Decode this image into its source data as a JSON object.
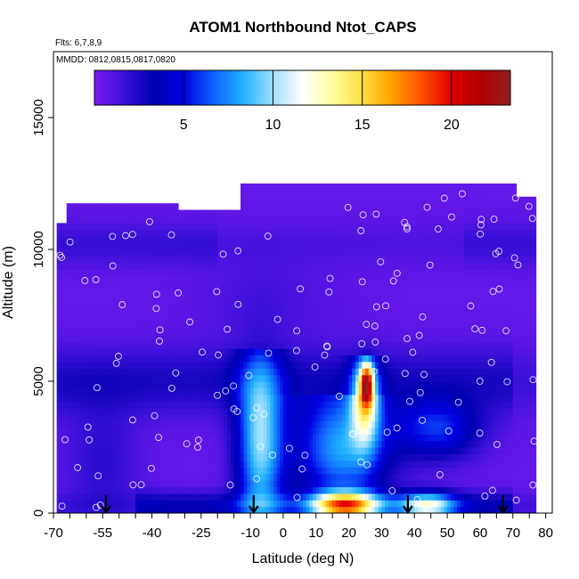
{
  "chart_data": {
    "type": "heatmap",
    "title": "ATOM1 Northbound Ntot_CAPS",
    "annotations": [
      "Flts: 6,7,8,9",
      "MMDD: 0812,0815,0817,0820"
    ],
    "xlabel": "Latitude (deg N)",
    "ylabel": "Altitude (m)",
    "xlim": [
      -70,
      82
    ],
    "ylim": [
      0,
      17500
    ],
    "x_ticks": [
      -70,
      -65,
      -60,
      -55,
      -50,
      -45,
      -40,
      -35,
      -30,
      -25,
      -20,
      -15,
      -10,
      -5,
      0,
      5,
      10,
      15,
      20,
      25,
      30,
      35,
      40,
      45,
      50,
      55,
      60,
      65,
      70,
      75,
      80
    ],
    "x_tick_labels": [
      "-70",
      "-55",
      "-40",
      "-25",
      "-10",
      "0",
      "10",
      "20",
      "30",
      "40",
      "50",
      "60",
      "70",
      "80"
    ],
    "x_tick_label_values": [
      -70,
      -55,
      -40,
      -25,
      -10,
      0,
      10,
      20,
      30,
      40,
      50,
      60,
      70,
      80
    ],
    "y_ticks": [
      0,
      5000,
      10000,
      15000
    ],
    "y_tick_labels": [
      "0",
      "5000",
      "10000",
      "15000"
    ],
    "colorbar": {
      "min": 0,
      "max": 23.3,
      "ticks": [
        5,
        10,
        15,
        20
      ],
      "tick_labels": [
        "5",
        "10",
        "15",
        "20"
      ],
      "placement": "top-inside",
      "colors": [
        "#7a1cf0",
        "#3a10d8",
        "#0000b0",
        "#0000e0",
        "#1060ff",
        "#20b0ff",
        "#a0e0ff",
        "#ffffff",
        "#ffffa0",
        "#ffe040",
        "#ffa000",
        "#ff5000",
        "#e00000",
        "#b00000",
        "#902020"
      ]
    },
    "arrows_latitude": [
      -54,
      -9,
      38,
      67
    ],
    "grid": false
  }
}
